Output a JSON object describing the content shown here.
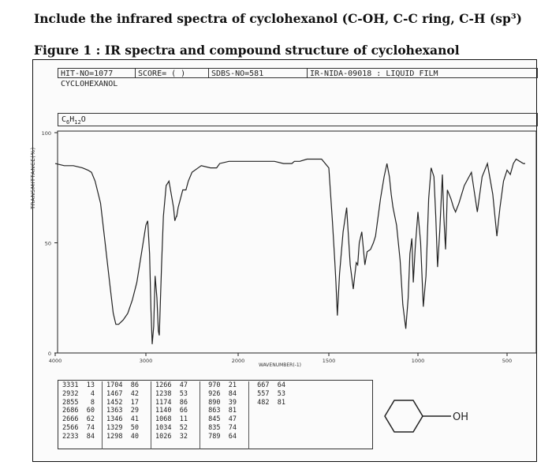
{
  "question": "Include the infrared spectra of cyclohexanol (C-OH, C-C ring, C-H (sp³)",
  "figure_caption": "Figure 1 : IR spectra and compound structure of cyclohexanol",
  "header": {
    "hit_no": "HIT-NO=1077",
    "score": "SCORE=  (   )",
    "sdbs_no": "SDBS-NO=581",
    "ir_nida": "IR-NIDA-09018 : LIQUID FILM"
  },
  "compound_name": "CYCLOHEXANOL",
  "formula": "C6H12O",
  "structure_label": "OH",
  "peak_table": {
    "columns": [
      [
        [
          "3331",
          "13"
        ],
        [
          "2932",
          "4"
        ],
        [
          "2855",
          "8"
        ],
        [
          "2686",
          "60"
        ],
        [
          "2666",
          "62"
        ],
        [
          "2566",
          "74"
        ],
        [
          "2233",
          "84"
        ]
      ],
      [
        [
          "1704",
          "86"
        ],
        [
          "1467",
          "42"
        ],
        [
          "1452",
          "17"
        ],
        [
          "1363",
          "29"
        ],
        [
          "1346",
          "41"
        ],
        [
          "1329",
          "50"
        ],
        [
          "1298",
          "40"
        ]
      ],
      [
        [
          "1266",
          "47"
        ],
        [
          "1238",
          "53"
        ],
        [
          "1174",
          "86"
        ],
        [
          "1140",
          "66"
        ],
        [
          "1068",
          "11"
        ],
        [
          "1034",
          "52"
        ],
        [
          "1026",
          "32"
        ]
      ],
      [
        [
          "970",
          "21"
        ],
        [
          "926",
          "84"
        ],
        [
          "890",
          "39"
        ],
        [
          "863",
          "81"
        ],
        [
          "845",
          "47"
        ],
        [
          "835",
          "74"
        ],
        [
          "789",
          "64"
        ]
      ],
      [
        [
          "667",
          "64"
        ],
        [
          "557",
          "53"
        ],
        [
          "482",
          "81"
        ]
      ]
    ]
  },
  "chart_data": {
    "type": "line",
    "title": "",
    "xlabel": "WAVENUMBER(-1)",
    "ylabel": "TRANSMITTANCE(%)",
    "x_ticks": [
      "4000",
      "3000",
      "2000",
      "1500",
      "1000",
      "500"
    ],
    "y_ticks": [
      "0",
      "50",
      "100"
    ],
    "xlim": [
      4000,
      400
    ],
    "ylim": [
      0,
      100
    ],
    "x_scale": "piecewise: 4000-2000 compressed, 2000-400 expanded",
    "grid": false,
    "series": [
      {
        "x": [
          4000,
          3900,
          3800,
          3700,
          3640,
          3600,
          3560,
          3500,
          3450,
          3400,
          3360,
          3331,
          3300,
          3250,
          3200,
          3150,
          3100,
          3050,
          3000,
          2980,
          2960,
          2945,
          2932,
          2915,
          2900,
          2880,
          2865,
          2855,
          2845,
          2830,
          2810,
          2780,
          2750,
          2700,
          2686,
          2670,
          2666,
          2650,
          2600,
          2566,
          2540,
          2500,
          2400,
          2300,
          2233,
          2200,
          2100,
          2050,
          2000,
          1950,
          1900,
          1850,
          1800,
          1750,
          1720,
          1704,
          1690,
          1660,
          1620,
          1580,
          1540,
          1500,
          1480,
          1467,
          1460,
          1452,
          1440,
          1420,
          1400,
          1380,
          1363,
          1355,
          1346,
          1338,
          1329,
          1315,
          1298,
          1285,
          1266,
          1250,
          1238,
          1210,
          1190,
          1174,
          1160,
          1150,
          1140,
          1120,
          1100,
          1085,
          1068,
          1055,
          1045,
          1034,
          1026,
          1015,
          1000,
          985,
          970,
          955,
          940,
          926,
          910,
          900,
          890,
          878,
          863,
          855,
          845,
          840,
          835,
          815,
          800,
          789,
          770,
          740,
          700,
          667,
          640,
          610,
          580,
          557,
          540,
          520,
          500,
          482,
          465,
          450,
          430,
          410,
          400
        ],
        "y": [
          86,
          85,
          85,
          84,
          83,
          82,
          78,
          68,
          50,
          32,
          18,
          13,
          13,
          15,
          18,
          24,
          32,
          45,
          58,
          60,
          45,
          20,
          4,
          12,
          35,
          25,
          10,
          8,
          20,
          40,
          62,
          76,
          78,
          66,
          60,
          62,
          62,
          66,
          74,
          74,
          78,
          82,
          85,
          84,
          84,
          86,
          87,
          87,
          87,
          87,
          87,
          87,
          87,
          86,
          86,
          86,
          87,
          87,
          88,
          88,
          88,
          84,
          60,
          42,
          32,
          17,
          36,
          55,
          66,
          40,
          29,
          35,
          41,
          40,
          50,
          55,
          40,
          46,
          47,
          50,
          53,
          70,
          80,
          86,
          80,
          72,
          66,
          58,
          42,
          22,
          11,
          25,
          45,
          52,
          32,
          48,
          64,
          50,
          21,
          35,
          70,
          84,
          80,
          62,
          39,
          55,
          81,
          62,
          47,
          60,
          74,
          70,
          66,
          64,
          68,
          76,
          82,
          64,
          80,
          86,
          72,
          53,
          66,
          78,
          83,
          81,
          86,
          88,
          87,
          86,
          86
        ],
        "color": "#222"
      }
    ]
  }
}
